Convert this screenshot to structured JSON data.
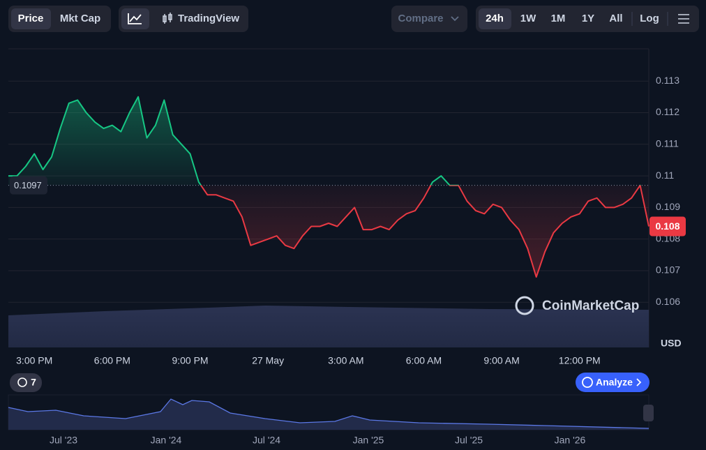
{
  "ui": {
    "price_tab": "Price",
    "mktcap_tab": "Mkt Cap",
    "tradingview": "TradingView",
    "compare": "Compare",
    "ranges": [
      "24h",
      "1W",
      "1M",
      "1Y",
      "All"
    ],
    "log": "Log",
    "history_count": "7",
    "analyze": "Analyze",
    "watermark": "CoinMarketCap",
    "overview_labels": [
      "Jul '23",
      "Jan '24",
      "Jul '24",
      "Jan '25",
      "Jul '25",
      "Jan '26"
    ]
  },
  "chart_data": {
    "type": "line",
    "categories": [
      null,
      null,
      null,
      "3:00 PM",
      null,
      null,
      null,
      null,
      null,
      null,
      null,
      null,
      "6:00 PM",
      null,
      null,
      null,
      null,
      null,
      null,
      null,
      null,
      "9:00 PM",
      null,
      null,
      null,
      null,
      null,
      null,
      null,
      null,
      "27 May",
      null,
      null,
      null,
      null,
      null,
      null,
      null,
      null,
      "3:00 AM",
      null,
      null,
      null,
      null,
      null,
      null,
      null,
      null,
      "6:00 AM",
      null,
      null,
      null,
      null,
      null,
      null,
      null,
      null,
      "9:00 AM",
      null,
      null,
      null,
      null,
      null,
      null,
      null,
      null,
      "12:00 PM",
      null,
      null,
      null,
      null,
      null,
      null,
      null,
      null
    ],
    "values": [
      0.11,
      0.11,
      0.1103,
      0.1107,
      0.1102,
      0.1106,
      0.1115,
      0.1123,
      0.1124,
      0.112,
      0.1117,
      0.1115,
      0.1116,
      0.1114,
      0.112,
      0.1125,
      0.1112,
      0.1116,
      0.1124,
      0.1113,
      0.111,
      0.1107,
      0.1098,
      0.1094,
      0.1094,
      0.1093,
      0.1092,
      0.1087,
      0.1078,
      0.1079,
      0.108,
      0.1081,
      0.1078,
      0.1077,
      0.1081,
      0.1084,
      0.1084,
      0.1085,
      0.1084,
      0.1087,
      0.109,
      0.1083,
      0.1083,
      0.1084,
      0.1083,
      0.1086,
      0.1088,
      0.1089,
      0.1093,
      0.1098,
      0.11,
      0.1097,
      0.1097,
      0.1092,
      0.1089,
      0.1088,
      0.1091,
      0.109,
      0.1086,
      0.1083,
      0.1077,
      0.1068,
      0.1076,
      0.1082,
      0.1085,
      0.1087,
      0.1088,
      0.1092,
      0.1093,
      0.109,
      0.109,
      0.1091,
      0.1093,
      0.1097,
      0.1084
    ],
    "reference_line": 0.1097,
    "current_price": {
      "value": 0.1084,
      "label": "0.108"
    },
    "ylim": [
      0.10457,
      0.11402
    ],
    "yticks": [
      0.106,
      0.107,
      0.108,
      0.109,
      0.11,
      0.111,
      0.112,
      0.113
    ],
    "y_unit": "USD",
    "up_color": "#16c784",
    "down_color": "#ea3943",
    "grid": true
  }
}
